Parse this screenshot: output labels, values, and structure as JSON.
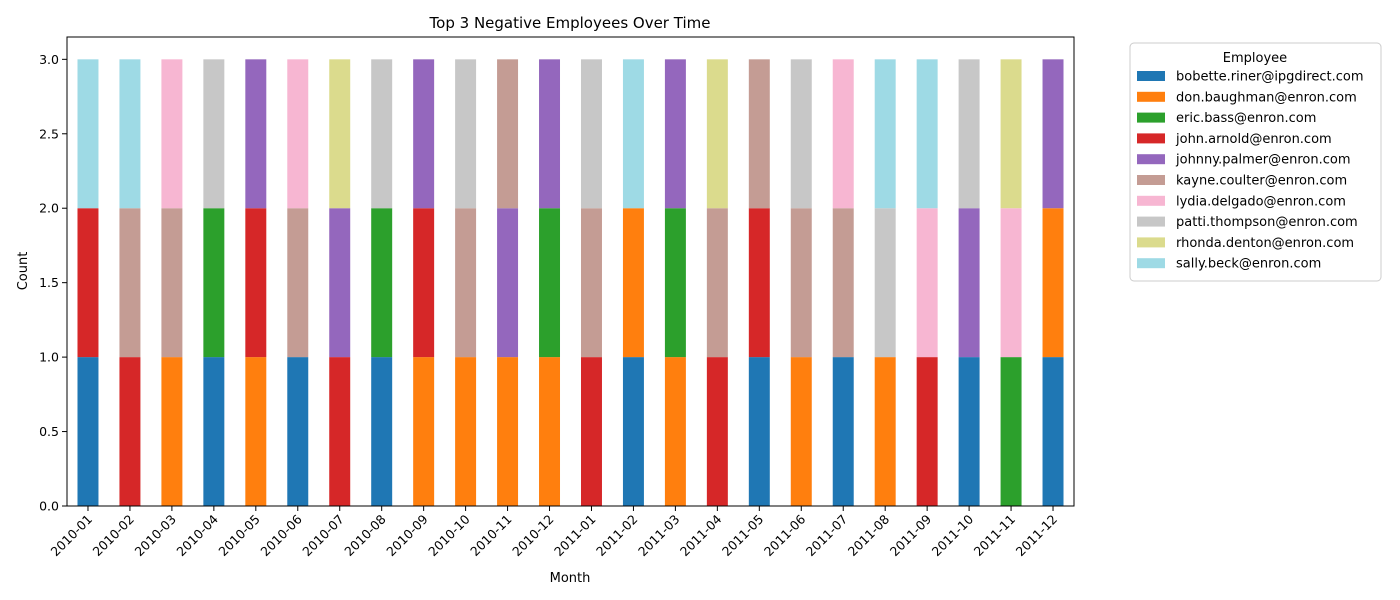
{
  "chart_data": {
    "type": "bar",
    "stacked": true,
    "title": "Top 3 Negative Employees Over Time",
    "xlabel": "Month",
    "ylabel": "Count",
    "ylim": [
      0,
      3.15
    ],
    "yticks": [
      "0.0",
      "0.5",
      "1.0",
      "1.5",
      "2.0",
      "2.5",
      "3.0"
    ],
    "grid": false,
    "legend": {
      "title": "Employee",
      "placement": "outside-right"
    },
    "categories": [
      "2010-01",
      "2010-02",
      "2010-03",
      "2010-04",
      "2010-05",
      "2010-06",
      "2010-07",
      "2010-08",
      "2010-09",
      "2010-10",
      "2010-11",
      "2010-12",
      "2011-01",
      "2011-02",
      "2011-03",
      "2011-04",
      "2011-05",
      "2011-06",
      "2011-07",
      "2011-08",
      "2011-09",
      "2011-10",
      "2011-11",
      "2011-12"
    ],
    "series": [
      {
        "name": "bobette.riner@ipgdirect.com",
        "color": "#1f77b4",
        "values": [
          1,
          0,
          0,
          1,
          0,
          1,
          0,
          1,
          0,
          0,
          0,
          0,
          0,
          1,
          0,
          0,
          1,
          0,
          1,
          0,
          0,
          1,
          0,
          1
        ]
      },
      {
        "name": "don.baughman@enron.com",
        "color": "#ff7f0e",
        "values": [
          0,
          0,
          1,
          0,
          1,
          0,
          0,
          0,
          1,
          1,
          1,
          1,
          0,
          1,
          1,
          0,
          0,
          1,
          0,
          1,
          0,
          0,
          0,
          1
        ]
      },
      {
        "name": "eric.bass@enron.com",
        "color": "#2ca02c",
        "values": [
          0,
          0,
          0,
          1,
          0,
          0,
          0,
          1,
          0,
          0,
          0,
          1,
          0,
          0,
          1,
          0,
          0,
          0,
          0,
          0,
          0,
          0,
          1,
          0
        ]
      },
      {
        "name": "john.arnold@enron.com",
        "color": "#d62728",
        "values": [
          1,
          1,
          0,
          0,
          1,
          0,
          1,
          0,
          1,
          0,
          0,
          0,
          1,
          0,
          0,
          1,
          1,
          0,
          0,
          0,
          1,
          0,
          0,
          0
        ]
      },
      {
        "name": "johnny.palmer@enron.com",
        "color": "#9467bd",
        "values": [
          0,
          0,
          0,
          0,
          1,
          0,
          1,
          0,
          1,
          0,
          1,
          1,
          0,
          0,
          1,
          0,
          0,
          0,
          0,
          0,
          0,
          1,
          0,
          1
        ]
      },
      {
        "name": "kayne.coulter@enron.com",
        "color": "#c49c94",
        "values": [
          0,
          1,
          1,
          0,
          0,
          1,
          0,
          0,
          0,
          1,
          1,
          0,
          1,
          0,
          0,
          1,
          1,
          1,
          1,
          0,
          0,
          0,
          0,
          0
        ]
      },
      {
        "name": "lydia.delgado@enron.com",
        "color": "#f7b6d2",
        "values": [
          0,
          0,
          1,
          0,
          0,
          1,
          0,
          0,
          0,
          0,
          0,
          0,
          0,
          0,
          0,
          0,
          0,
          0,
          1,
          0,
          1,
          0,
          1,
          0
        ]
      },
      {
        "name": "patti.thompson@enron.com",
        "color": "#c7c7c7",
        "values": [
          0,
          0,
          0,
          1,
          0,
          0,
          0,
          1,
          0,
          1,
          0,
          0,
          1,
          0,
          0,
          0,
          0,
          1,
          0,
          1,
          0,
          1,
          0,
          0
        ]
      },
      {
        "name": "rhonda.denton@enron.com",
        "color": "#dbdb8d",
        "values": [
          0,
          0,
          0,
          0,
          0,
          0,
          1,
          0,
          0,
          0,
          0,
          0,
          0,
          0,
          0,
          1,
          0,
          0,
          0,
          0,
          0,
          0,
          1,
          0
        ]
      },
      {
        "name": "sally.beck@enron.com",
        "color": "#9edae5",
        "values": [
          1,
          1,
          0,
          0,
          0,
          0,
          0,
          0,
          0,
          0,
          0,
          0,
          0,
          1,
          0,
          0,
          0,
          0,
          0,
          1,
          1,
          0,
          0,
          0
        ]
      }
    ]
  }
}
